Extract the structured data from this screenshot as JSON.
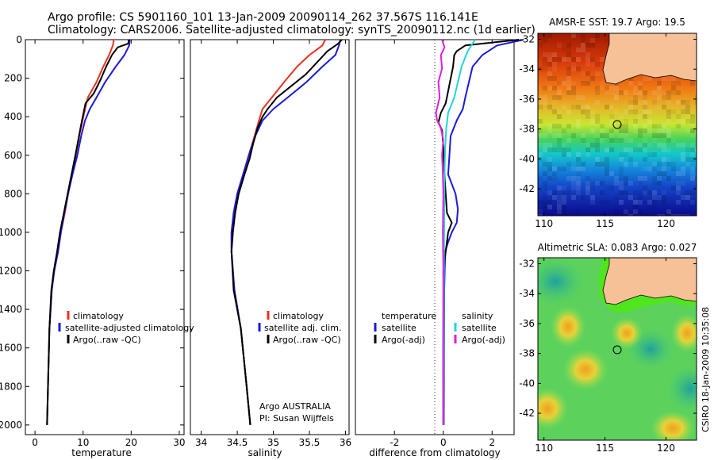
{
  "header": {
    "line1": "Argo profile: CS 5901160_101 13-Jan-2009 20090114_262 37.567S 116.141E",
    "line2": "Climatology: CARS2006. Satellite-adjusted climatology: synTS_20090112.nc (1d earlier)"
  },
  "credits": {
    "argo_australia": "Argo AUSTRALIA",
    "pi": "PI: Susan Wijffels",
    "csiro_stamp": "CSIRO 18-Jan-2009 10:35:08"
  },
  "chart_data": [
    {
      "type": "line",
      "title": "",
      "xlabel": "temperature",
      "ylabel": "",
      "xlim": [
        -2,
        31
      ],
      "ylim": [
        2050,
        0
      ],
      "xticks": [
        0,
        10,
        20,
        30
      ],
      "yticks": [
        0,
        200,
        400,
        600,
        800,
        1000,
        1200,
        1400,
        1600,
        1800,
        2000
      ],
      "legend": "lower-left",
      "series": [
        {
          "name": "climatology",
          "color": "#e8321e",
          "x": [
            16.4,
            16.2,
            15.4,
            14.2,
            12.8,
            11.0,
            10.4,
            9.9,
            9.2,
            8.5,
            7.6,
            6.9,
            6.2,
            5.4,
            4.8,
            4.0,
            3.5,
            3.0,
            2.7,
            2.5
          ],
          "y": [
            0,
            30,
            80,
            140,
            220,
            300,
            360,
            420,
            500,
            600,
            700,
            800,
            900,
            1000,
            1100,
            1200,
            1300,
            1500,
            1800,
            2000
          ]
        },
        {
          "name": "satellite-adjusted climatology",
          "color": "#1a1adc",
          "x": [
            19.7,
            19.6,
            18.6,
            16.8,
            14.6,
            12.8,
            11.4,
            10.4,
            9.6,
            8.8,
            7.8,
            6.9,
            6.1,
            5.4,
            4.8,
            4.0,
            3.5,
            3.0,
            2.7,
            2.5
          ],
          "y": [
            0,
            30,
            80,
            140,
            220,
            300,
            360,
            420,
            500,
            600,
            700,
            800,
            900,
            1000,
            1100,
            1200,
            1300,
            1500,
            1800,
            2000
          ]
        },
        {
          "name": "Argo(..raw -QC)",
          "color": "#000000",
          "x": [
            19.5,
            19.4,
            17.2,
            16.0,
            14.8,
            13.6,
            12.2,
            10.5,
            10.1,
            9.6,
            9.0,
            8.4,
            7.6,
            6.8,
            6.0,
            5.2,
            4.6,
            3.9,
            3.4,
            3.0,
            2.7,
            2.5
          ],
          "y": [
            0,
            20,
            40,
            80,
            140,
            210,
            280,
            330,
            380,
            440,
            520,
            600,
            700,
            800,
            900,
            1000,
            1100,
            1200,
            1300,
            1500,
            1800,
            2000
          ]
        }
      ]
    },
    {
      "type": "line",
      "title": "",
      "xlabel": "salinity",
      "ylabel": "",
      "xlim": [
        33.85,
        36.05
      ],
      "ylim": [
        2050,
        0
      ],
      "xticks": [
        34,
        34.5,
        35,
        35.5,
        36
      ],
      "yticks": [],
      "legend": "lower-right",
      "series": [
        {
          "name": "climatology",
          "color": "#e8321e",
          "x": [
            35.72,
            35.68,
            35.5,
            35.33,
            35.15,
            34.98,
            34.85,
            34.8,
            34.74,
            34.66,
            34.58,
            34.5,
            34.45,
            34.42,
            34.42,
            34.46,
            34.55,
            34.63,
            34.68
          ],
          "y": [
            0,
            30,
            80,
            140,
            220,
            300,
            360,
            420,
            500,
            600,
            700,
            800,
            900,
            1000,
            1100,
            1300,
            1500,
            1800,
            2000
          ]
        },
        {
          "name": "satellite adj. clim.",
          "color": "#1a1adc",
          "x": [
            35.93,
            35.91,
            35.86,
            35.68,
            35.46,
            35.2,
            35.0,
            34.85,
            34.75,
            34.66,
            34.58,
            34.5,
            34.45,
            34.42,
            34.42,
            34.46,
            34.55,
            34.63,
            34.68
          ],
          "y": [
            0,
            30,
            80,
            140,
            220,
            300,
            360,
            420,
            500,
            600,
            700,
            800,
            900,
            1000,
            1100,
            1300,
            1500,
            1800,
            2000
          ]
        },
        {
          "name": "Argo(..raw -QC)",
          "color": "#000000",
          "x": [
            35.95,
            35.9,
            35.75,
            35.6,
            35.45,
            35.25,
            35.05,
            34.92,
            34.85,
            34.78,
            34.72,
            34.67,
            34.6,
            34.52,
            34.47,
            34.44,
            34.42,
            34.45,
            34.55,
            34.63,
            34.68
          ],
          "y": [
            0,
            20,
            60,
            120,
            180,
            240,
            300,
            360,
            400,
            460,
            540,
            620,
            700,
            800,
            900,
            1000,
            1100,
            1300,
            1500,
            1800,
            2000
          ]
        }
      ]
    },
    {
      "type": "line",
      "title": "",
      "xlabel": "difference from climatology",
      "ylabel": "",
      "xlim": [
        -3.6,
        2.9
      ],
      "ylim": [
        2050,
        0
      ],
      "xticks": [
        -2,
        0,
        2
      ],
      "yticks": [],
      "legend_headers": {
        "temperature": "temperature",
        "salinity": "salinity"
      },
      "legend": "lower-center",
      "series": [
        {
          "name": "temperature satellite",
          "color": "#1a1adc",
          "x": [
            3.3,
            2.2,
            1.6,
            1.2,
            1.05,
            0.9,
            0.8,
            0.55,
            0.3,
            0.25,
            0.2,
            0.5,
            0.6,
            0.55,
            0.35,
            0.2,
            0.08,
            0.04,
            0.03,
            0.02
          ],
          "y": [
            0,
            30,
            80,
            140,
            220,
            300,
            360,
            420,
            500,
            600,
            700,
            800,
            880,
            950,
            1000,
            1050,
            1100,
            1300,
            1600,
            2000
          ]
        },
        {
          "name": "temperature Argo(-adj)",
          "color": "#000000",
          "x": [
            3.1,
            0.9,
            0.55,
            0.45,
            0.4,
            0.1,
            -0.1,
            -0.2,
            -0.05,
            0.0,
            0.05,
            0.1,
            0.15,
            0.35,
            0.2,
            0.1,
            0.0,
            0.02,
            0.0,
            0.0
          ],
          "y": [
            0,
            30,
            60,
            80,
            140,
            330,
            380,
            430,
            470,
            550,
            700,
            800,
            900,
            950,
            1000,
            1100,
            1200,
            1400,
            1700,
            2000
          ]
        },
        {
          "name": "salinity satellite",
          "color": "#1ed6d6",
          "x": [
            1.3,
            1.0,
            0.75,
            0.6,
            0.45,
            0.2,
            0.12,
            0.08,
            0.05,
            0.04,
            0.03,
            0.02,
            0.01,
            0.0
          ],
          "y": [
            0,
            60,
            140,
            220,
            300,
            380,
            460,
            560,
            700,
            900,
            1100,
            1400,
            1700,
            2000
          ]
        },
        {
          "name": "salinity Argo(-adj)",
          "color": "#e01ee0",
          "x": [
            -0.05,
            0.05,
            -0.1,
            -0.05,
            -0.2,
            -0.15,
            -0.3,
            -0.25,
            -0.1,
            0.0,
            -0.05,
            -0.02,
            0.0,
            -0.02,
            0.0,
            -0.01,
            0.0
          ],
          "y": [
            0,
            40,
            80,
            150,
            220,
            300,
            380,
            420,
            460,
            520,
            600,
            700,
            800,
            1000,
            1200,
            1600,
            2000
          ]
        }
      ]
    },
    {
      "type": "heatmap",
      "title": "AMSR-E SST: 19.7 Argo: 19.5",
      "xlabel": "",
      "ylabel": "",
      "xlim": [
        109.5,
        122.5
      ],
      "ylim": [
        -43.8,
        -31.6
      ],
      "xticks": [
        110,
        115,
        120
      ],
      "yticks": [
        -32,
        -34,
        -36,
        -38,
        -40,
        -42
      ],
      "argo_position": {
        "lon": 116.141,
        "lat": -37.567
      },
      "colors": {
        "land": "#f7c198",
        "ocean_low": "#0a0a8c",
        "ocean_high": "#a01a00"
      }
    },
    {
      "type": "heatmap",
      "title": "Altimetric SLA: 0.083 Argo: 0.027",
      "xlabel": "",
      "ylabel": "",
      "xlim": [
        109.5,
        122.5
      ],
      "ylim": [
        -43.8,
        -31.6
      ],
      "xticks": [
        110,
        115,
        120
      ],
      "yticks": [
        -32,
        -34,
        -36,
        -38,
        -40,
        -42
      ],
      "argo_position": {
        "lon": 116.141,
        "lat": -37.567
      },
      "colors": {
        "land": "#f7c198",
        "shelf": "#50e61e",
        "base": "#5cd25c"
      }
    }
  ]
}
